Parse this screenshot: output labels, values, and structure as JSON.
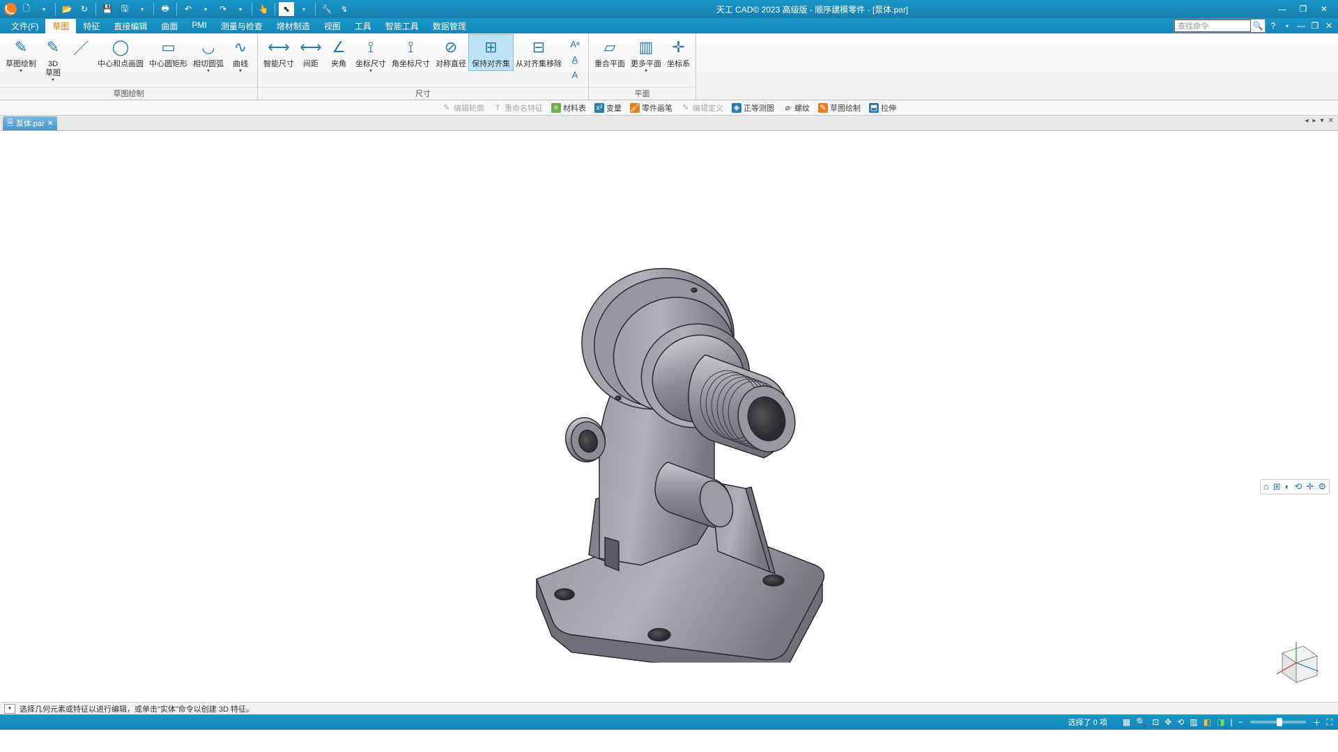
{
  "app": {
    "title": "天工 CAD© 2023 高级版 - 顺序建模零件 - [泵体.par]"
  },
  "menubar": {
    "items": [
      "文件(F)",
      "草图",
      "特征",
      "直接编辑",
      "曲面",
      "PMI",
      "测量与检查",
      "增材制造",
      "视图",
      "工具",
      "智能工具",
      "数据管理"
    ],
    "active_index": 1,
    "search_placeholder": "查找命令"
  },
  "ribbon": {
    "groups": [
      {
        "label": "草图绘制",
        "buttons": [
          {
            "label": "草图绘制",
            "glyph": "✎",
            "dd": true
          },
          {
            "label": "3D\n草图",
            "glyph": "✎",
            "dd": true
          },
          {
            "label": "",
            "glyph": "／",
            "small": true
          },
          {
            "label": "中心和点画圆",
            "glyph": "◯"
          },
          {
            "label": "中心圆矩形",
            "glyph": "▭"
          },
          {
            "label": "相切圆弧",
            "glyph": "◡",
            "dd": true
          },
          {
            "label": "曲线",
            "glyph": "∿",
            "dd": true
          }
        ]
      },
      {
        "label": "尺寸",
        "buttons": [
          {
            "label": "智能尺寸",
            "glyph": "⟷"
          },
          {
            "label": "间距",
            "glyph": "⟷"
          },
          {
            "label": "夹角",
            "glyph": "∠"
          },
          {
            "label": "坐标尺寸",
            "glyph": "⟟",
            "dd": true
          },
          {
            "label": "角坐标尺寸",
            "glyph": "⟟"
          },
          {
            "label": "对称直径",
            "glyph": "⊘"
          },
          {
            "label": "保持对齐集",
            "glyph": "⊞",
            "selected": true
          },
          {
            "label": "从对齐集移除",
            "glyph": "⊟"
          }
        ],
        "stack": [
          "Aᵃ",
          "A̲",
          "A"
        ]
      },
      {
        "label": "平面",
        "buttons": [
          {
            "label": "重合平面",
            "glyph": "▱"
          },
          {
            "label": "更多平面",
            "glyph": "▥",
            "dd": true
          },
          {
            "label": "坐标系",
            "glyph": "✛"
          }
        ]
      }
    ]
  },
  "subbar": {
    "items": [
      {
        "label": "编辑轮廓",
        "ico": "✎",
        "cls": "disabled"
      },
      {
        "label": "重命名特征",
        "ico": "T",
        "cls": "disabled"
      },
      {
        "label": "材料表",
        "ico": "≡",
        "icocls": "g"
      },
      {
        "label": "变量",
        "ico": "x²",
        "icocls": "b"
      },
      {
        "label": "零件画笔",
        "ico": "🖌",
        "icocls": "o"
      },
      {
        "label": "编辑定义",
        "ico": "✎",
        "cls": "disabled"
      },
      {
        "label": "正等测图",
        "ico": "◈",
        "icocls": "b"
      },
      {
        "label": "螺纹",
        "ico": "⌀"
      },
      {
        "label": "草图绘制",
        "ico": "✎",
        "icocls": "o"
      },
      {
        "label": "拉伸",
        "ico": "⬒",
        "icocls": "b"
      }
    ]
  },
  "doctab": {
    "name": "泵体.par"
  },
  "prompt": {
    "text": "选择几何元素或特征以进行编辑，或单击\"实体\"命令以创建 3D 特征。"
  },
  "status": {
    "selection": "选择了 0 项"
  },
  "model": {
    "fill_main": "#8f8f98",
    "fill_light": "#a5a5ad",
    "fill_dark": "#6f6f78",
    "edge": "#2b2b30"
  }
}
